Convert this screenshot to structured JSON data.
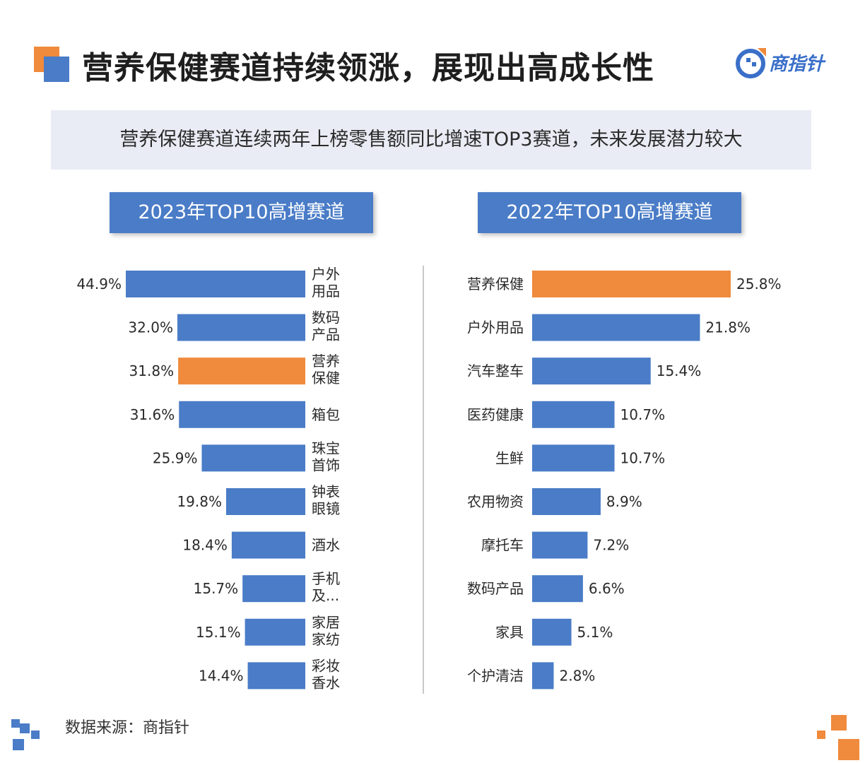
{
  "header": {
    "title": "营养保健赛道持续领涨，展现出高成长性",
    "logo_text": "商指针"
  },
  "subtitle": "营养保健赛道连续两年上榜零售额同比增速TOP3赛道，未来发展潜力较大",
  "colors": {
    "bar": "#4a7cc7",
    "highlight": "#f08a3c",
    "header_bg": "#4a7cc7",
    "subtitle_bg": "#e9ecf4"
  },
  "chart_data": [
    {
      "type": "bar",
      "orientation": "horizontal",
      "title": "2023年TOP10高增赛道",
      "categories": [
        [
          "户外",
          "用品"
        ],
        [
          "数码",
          "产品"
        ],
        [
          "营养",
          "保健"
        ],
        [
          "箱包"
        ],
        [
          "珠宝",
          "首饰"
        ],
        [
          "钟表",
          "眼镜"
        ],
        [
          "酒水"
        ],
        [
          "手机",
          "及..."
        ],
        [
          "家居",
          "家纺"
        ],
        [
          "彩妆",
          "香水"
        ]
      ],
      "values": [
        44.9,
        32.0,
        31.8,
        31.6,
        25.9,
        19.8,
        18.4,
        15.7,
        15.1,
        14.4
      ],
      "labels": [
        "44.9%",
        "32.0%",
        "31.8%",
        "31.6%",
        "25.9%",
        "19.8%",
        "18.4%",
        "15.7%",
        "15.1%",
        "14.4%"
      ],
      "highlight_index": 2,
      "grid": false
    },
    {
      "type": "bar",
      "orientation": "horizontal",
      "title": "2022年TOP10高增赛道",
      "categories": [
        "营养保健",
        "户外用品",
        "汽车整车",
        "医药健康",
        "生鲜",
        "农用物资",
        "摩托车",
        "数码产品",
        "家具",
        "个护清洁"
      ],
      "values": [
        25.8,
        21.8,
        15.4,
        10.7,
        10.7,
        8.9,
        7.2,
        6.6,
        5.1,
        2.8
      ],
      "labels": [
        "25.8%",
        "21.8%",
        "15.4%",
        "10.7%",
        "10.7%",
        "8.9%",
        "7.2%",
        "6.6%",
        "5.1%",
        "2.8%"
      ],
      "highlight_index": 0,
      "grid": false
    }
  ],
  "footer": {
    "source": "数据来源：商指针"
  }
}
